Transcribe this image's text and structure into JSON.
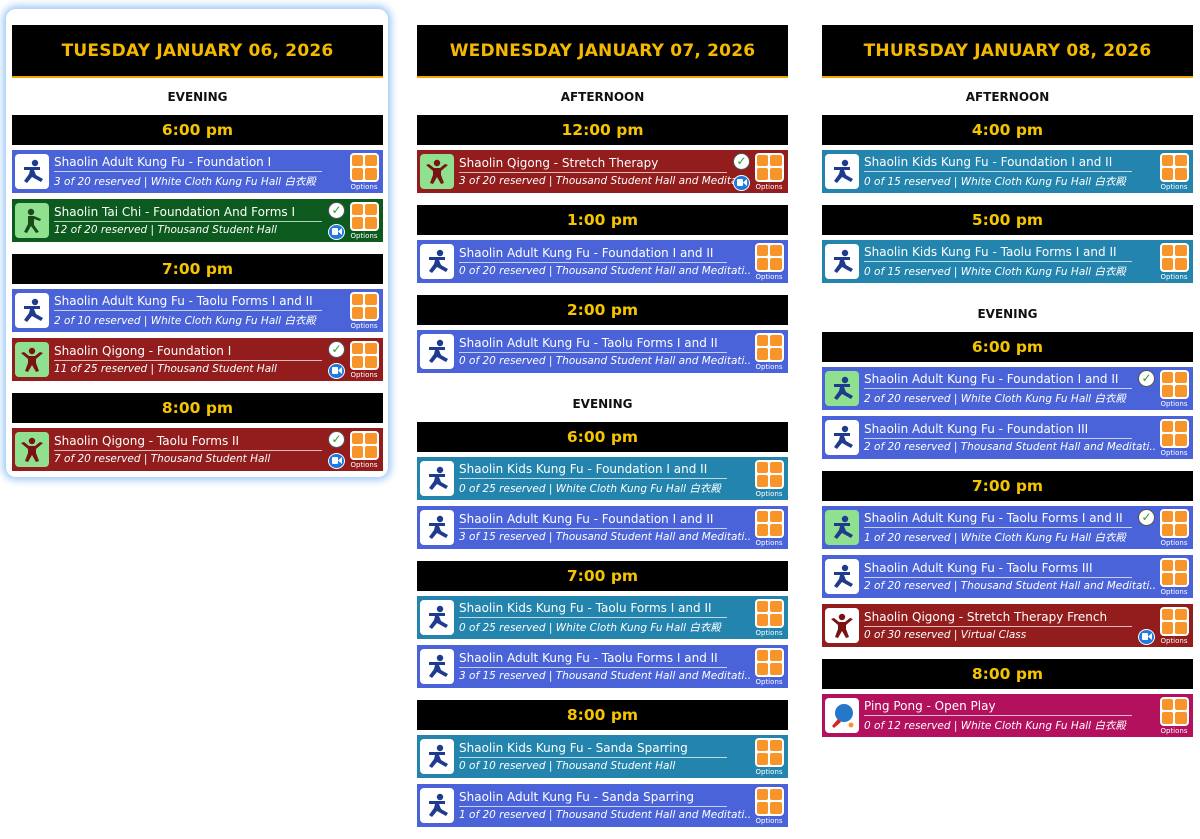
{
  "colors": {
    "adult": "#4a63d8",
    "kids": "#2385ad",
    "taichi": "#0d5a1f",
    "qigong": "#931c1c",
    "pingpong": "#b3105d",
    "header_text": "#f5b800"
  },
  "options_label": "Options",
  "days": [
    {
      "title": "TUESDAY JANUARY 06, 2026",
      "sections": [
        {
          "label": "EVENING",
          "slots": [
            {
              "time": "6:00 pm",
              "classes": [
                {
                  "name": "Shaolin Adult Kung Fu - Foundation I",
                  "info": "3 of 20 reserved | White Cloth Kung Fu Hall 白衣殿",
                  "type": "adult",
                  "icon": "kungfu-icon",
                  "checked": false,
                  "video": false
                },
                {
                  "name": "Shaolin Tai Chi - Foundation And Forms I",
                  "info": "12 of 20 reserved | Thousand Student Hall",
                  "type": "taichi",
                  "icon": "taichi-icon",
                  "checked": true,
                  "video": true
                }
              ]
            },
            {
              "time": "7:00 pm",
              "classes": [
                {
                  "name": "Shaolin Adult Kung Fu - Taolu Forms I and II",
                  "info": "2 of 10 reserved | White Cloth Kung Fu Hall 白衣殿",
                  "type": "adult",
                  "icon": "kungfu-icon",
                  "checked": false,
                  "video": false
                },
                {
                  "name": "Shaolin Qigong - Foundation I",
                  "info": "11 of 25 reserved | Thousand Student Hall",
                  "type": "qigong",
                  "icon": "qigong-icon",
                  "checked": true,
                  "video": true
                }
              ]
            },
            {
              "time": "8:00 pm",
              "classes": [
                {
                  "name": "Shaolin Qigong - Taolu Forms II",
                  "info": "7 of 20 reserved | Thousand Student Hall",
                  "type": "qigong",
                  "icon": "qigong-icon",
                  "checked": true,
                  "video": true
                }
              ]
            }
          ]
        }
      ]
    },
    {
      "title": "WEDNESDAY JANUARY 07, 2026",
      "sections": [
        {
          "label": "AFTERNOON",
          "slots": [
            {
              "time": "12:00 pm",
              "classes": [
                {
                  "name": "Shaolin Qigong - Stretch Therapy",
                  "info": "3 of 20 reserved | Thousand Student Hall and Meditati",
                  "type": "qigong",
                  "icon": "qigong-icon",
                  "checked": true,
                  "video": true
                }
              ]
            },
            {
              "time": "1:00 pm",
              "classes": [
                {
                  "name": "Shaolin Adult Kung Fu - Foundation I and II",
                  "info": "0 of 20 reserved | Thousand Student Hall and Meditati..",
                  "type": "adult",
                  "icon": "kungfu-icon",
                  "checked": false,
                  "video": false
                }
              ]
            },
            {
              "time": "2:00 pm",
              "classes": [
                {
                  "name": "Shaolin Adult Kung Fu - Taolu Forms I and II",
                  "info": "0 of 20 reserved | Thousand Student Hall and Meditati..",
                  "type": "adult",
                  "icon": "kungfu-icon",
                  "checked": false,
                  "video": false
                }
              ]
            }
          ]
        },
        {
          "label": "EVENING",
          "slots": [
            {
              "time": "6:00 pm",
              "classes": [
                {
                  "name": "Shaolin Kids Kung Fu - Foundation I and II",
                  "info": "0 of 25 reserved | White Cloth Kung Fu Hall 白衣殿",
                  "type": "kids",
                  "icon": "kungfu-icon",
                  "checked": false,
                  "video": false
                },
                {
                  "name": "Shaolin Adult Kung Fu - Foundation I and II",
                  "info": "3 of 15 reserved | Thousand Student Hall and Meditati..",
                  "type": "adult",
                  "icon": "kungfu-icon",
                  "checked": false,
                  "video": false
                }
              ]
            },
            {
              "time": "7:00 pm",
              "classes": [
                {
                  "name": "Shaolin Kids Kung Fu - Taolu Forms I and II",
                  "info": "0 of 25 reserved | White Cloth Kung Fu Hall 白衣殿",
                  "type": "kids",
                  "icon": "kungfu-icon",
                  "checked": false,
                  "video": false
                },
                {
                  "name": "Shaolin Adult Kung Fu - Taolu Forms I and II",
                  "info": "3 of 15 reserved | Thousand Student Hall and Meditati..",
                  "type": "adult",
                  "icon": "kungfu-icon",
                  "checked": false,
                  "video": false
                }
              ]
            },
            {
              "time": "8:00 pm",
              "classes": [
                {
                  "name": "Shaolin Kids Kung Fu - Sanda Sparring",
                  "info": "0 of 10 reserved | Thousand Student Hall",
                  "type": "kids",
                  "icon": "kungfu-icon",
                  "checked": false,
                  "video": false
                },
                {
                  "name": "Shaolin Adult Kung Fu - Sanda Sparring",
                  "info": "1 of 20 reserved | Thousand Student Hall and Meditati..",
                  "type": "adult",
                  "icon": "kungfu-icon",
                  "checked": false,
                  "video": false
                }
              ]
            }
          ]
        }
      ]
    },
    {
      "title": "THURSDAY JANUARY 08, 2026",
      "sections": [
        {
          "label": "AFTERNOON",
          "slots": [
            {
              "time": "4:00 pm",
              "classes": [
                {
                  "name": "Shaolin Kids Kung Fu - Foundation I and II",
                  "info": "0 of 15 reserved | White Cloth Kung Fu Hall 白衣殿",
                  "type": "kids",
                  "icon": "kungfu-icon",
                  "checked": false,
                  "video": false
                }
              ]
            },
            {
              "time": "5:00 pm",
              "classes": [
                {
                  "name": "Shaolin Kids Kung Fu - Taolu Forms I and II",
                  "info": "0 of 15 reserved | White Cloth Kung Fu Hall 白衣殿",
                  "type": "kids",
                  "icon": "kungfu-icon",
                  "checked": false,
                  "video": false
                }
              ]
            }
          ]
        },
        {
          "label": "EVENING",
          "slots": [
            {
              "time": "6:00 pm",
              "classes": [
                {
                  "name": "Shaolin Adult Kung Fu - Foundation I and II",
                  "info": "2 of 20 reserved | White Cloth Kung Fu Hall 白衣殿",
                  "type": "adult",
                  "icon": "kungfu-icon",
                  "checked": true,
                  "video": false
                },
                {
                  "name": "Shaolin Adult Kung Fu - Foundation III",
                  "info": "2 of 20 reserved | Thousand Student Hall and Meditati..",
                  "type": "adult",
                  "icon": "kungfu-icon",
                  "checked": false,
                  "video": false
                }
              ]
            },
            {
              "time": "7:00 pm",
              "classes": [
                {
                  "name": "Shaolin Adult Kung Fu - Taolu Forms I and II",
                  "info": "1 of 20 reserved | White Cloth Kung Fu Hall 白衣殿",
                  "type": "adult",
                  "icon": "kungfu-icon",
                  "checked": true,
                  "video": false
                },
                {
                  "name": "Shaolin Adult Kung Fu - Taolu Forms III",
                  "info": "2 of 20 reserved | Thousand Student Hall and Meditati..",
                  "type": "adult",
                  "icon": "kungfu-icon",
                  "checked": false,
                  "video": false
                },
                {
                  "name": "Shaolin Qigong - Stretch Therapy French",
                  "info": "0 of 30 reserved | Virtual Class",
                  "type": "qigong",
                  "icon": "qigong-icon",
                  "checked": false,
                  "video": true
                }
              ]
            },
            {
              "time": "8:00 pm",
              "classes": [
                {
                  "name": "Ping Pong - Open Play",
                  "info": "0 of 12 reserved | White Cloth Kung Fu Hall 白衣殿",
                  "type": "pingpong",
                  "icon": "pingpong-icon",
                  "checked": false,
                  "video": false
                }
              ]
            }
          ]
        }
      ]
    }
  ]
}
